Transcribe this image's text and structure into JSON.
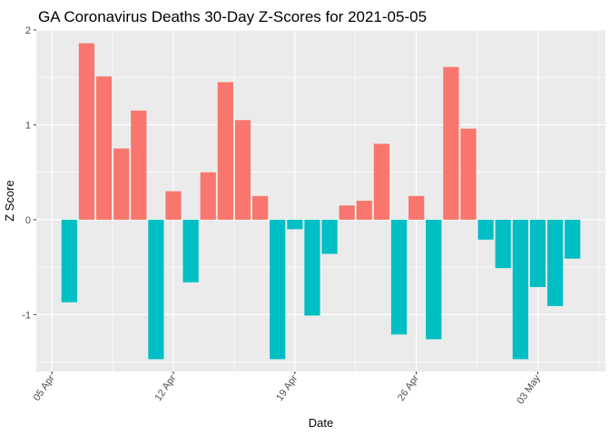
{
  "chart_data": {
    "type": "bar",
    "title": "GA Coronavirus Deaths 30-Day Z-Scores for 2021-05-05",
    "xlabel": "Date",
    "ylabel": "Z Score",
    "ylim": [
      -1.6,
      2.0
    ],
    "y_ticks": [
      -1,
      0,
      1,
      2
    ],
    "x_ticks": [
      {
        "day": 0,
        "label": "05 Apr"
      },
      {
        "day": 7,
        "label": "12 Apr"
      },
      {
        "day": 14,
        "label": "19 Apr"
      },
      {
        "day": 21,
        "label": "26 Apr"
      },
      {
        "day": 28,
        "label": "03 May"
      }
    ],
    "colors": {
      "positive": "#F8766D",
      "negative": "#00BFC4",
      "panel": "#EBEBEB",
      "grid": "#FFFFFF"
    },
    "grid": true,
    "series": [
      {
        "name": "Z Score",
        "points": [
          {
            "date": "2021-04-06",
            "day": 1,
            "value": -0.87
          },
          {
            "date": "2021-04-07",
            "day": 2,
            "value": 1.86
          },
          {
            "date": "2021-04-08",
            "day": 3,
            "value": 1.51
          },
          {
            "date": "2021-04-09",
            "day": 4,
            "value": 0.75
          },
          {
            "date": "2021-04-10",
            "day": 5,
            "value": 1.15
          },
          {
            "date": "2021-04-11",
            "day": 6,
            "value": -1.47
          },
          {
            "date": "2021-04-12",
            "day": 7,
            "value": 0.3
          },
          {
            "date": "2021-04-13",
            "day": 8,
            "value": -0.66
          },
          {
            "date": "2021-04-14",
            "day": 9,
            "value": 0.5
          },
          {
            "date": "2021-04-15",
            "day": 10,
            "value": 1.45
          },
          {
            "date": "2021-04-16",
            "day": 11,
            "value": 1.05
          },
          {
            "date": "2021-04-17",
            "day": 12,
            "value": 0.25
          },
          {
            "date": "2021-04-18",
            "day": 13,
            "value": -1.47
          },
          {
            "date": "2021-04-19",
            "day": 14,
            "value": -0.1
          },
          {
            "date": "2021-04-20",
            "day": 15,
            "value": -1.01
          },
          {
            "date": "2021-04-21",
            "day": 16,
            "value": -0.36
          },
          {
            "date": "2021-04-22",
            "day": 17,
            "value": 0.15
          },
          {
            "date": "2021-04-23",
            "day": 18,
            "value": 0.2
          },
          {
            "date": "2021-04-24",
            "day": 19,
            "value": 0.8
          },
          {
            "date": "2021-04-25",
            "day": 20,
            "value": -1.21
          },
          {
            "date": "2021-04-26",
            "day": 21,
            "value": 0.25
          },
          {
            "date": "2021-04-27",
            "day": 22,
            "value": -1.26
          },
          {
            "date": "2021-04-28",
            "day": 23,
            "value": 1.61
          },
          {
            "date": "2021-04-29",
            "day": 24,
            "value": 0.96
          },
          {
            "date": "2021-04-30",
            "day": 25,
            "value": -0.21
          },
          {
            "date": "2021-05-01",
            "day": 26,
            "value": -0.51
          },
          {
            "date": "2021-05-02",
            "day": 27,
            "value": -1.47
          },
          {
            "date": "2021-05-03",
            "day": 28,
            "value": -0.71
          },
          {
            "date": "2021-05-04",
            "day": 29,
            "value": -0.91
          },
          {
            "date": "2021-05-05",
            "day": 30,
            "value": -0.41
          }
        ]
      }
    ]
  }
}
